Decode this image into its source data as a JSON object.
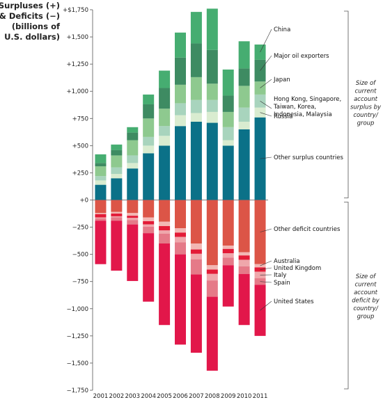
{
  "chart_data": {
    "type": "bar",
    "stacked": true,
    "ylabel_lines": [
      "Surpluses (+)",
      "& Deficits (−)",
      "(billions of",
      "U.S. dollars)"
    ],
    "categories": [
      "2001",
      "2002",
      "2003",
      "2004",
      "2005",
      "2006",
      "2007",
      "2008",
      "2009",
      "2010",
      "2011"
    ],
    "ylim": [
      -1750,
      1750
    ],
    "yticks": [
      1750,
      1500,
      1250,
      1000,
      750,
      500,
      250,
      0,
      -250,
      -500,
      -750,
      -1000,
      -1250,
      -1500,
      -1750
    ],
    "ytick_labels": [
      "+$1,750",
      "+1,500",
      "+1,250",
      "+1,000",
      "+750",
      "+500",
      "+250",
      "+0",
      "−250",
      "−500",
      "−750",
      "−1,000",
      "−1,250",
      "−1,500",
      "−1,750"
    ],
    "surplus_series": [
      {
        "name": "Other surplus countries",
        "color": "#0b7188",
        "values": [
          140,
          200,
          290,
          430,
          500,
          680,
          720,
          710,
          500,
          650,
          760
        ]
      },
      {
        "name": "Russia",
        "color": "#d9ecd0",
        "values": [
          40,
          40,
          50,
          70,
          90,
          100,
          80,
          100,
          50,
          70,
          90
        ]
      },
      {
        "name": "Hong Kong, Singapore, Taiwan, Korea, Indonesia, Malaysia",
        "color": "#a8d4bd",
        "values": [
          40,
          60,
          70,
          80,
          90,
          110,
          120,
          110,
          120,
          130,
          120
        ]
      },
      {
        "name": "Japan",
        "color": "#8ec98f",
        "values": [
          90,
          110,
          140,
          170,
          160,
          170,
          210,
          150,
          140,
          200,
          120
        ]
      },
      {
        "name": "Major oil exporters",
        "color": "#3e8b62",
        "values": [
          30,
          50,
          70,
          130,
          190,
          250,
          310,
          310,
          150,
          160,
          200
        ]
      },
      {
        "name": "China",
        "color": "#46ad71",
        "values": [
          80,
          50,
          50,
          90,
          160,
          230,
          290,
          380,
          240,
          250,
          140
        ]
      }
    ],
    "deficit_series": [
      {
        "name": "Other deficit countries",
        "color": "#dc5547",
        "values": [
          -120,
          -110,
          -120,
          -160,
          -200,
          -260,
          -400,
          -600,
          -420,
          -480,
          -590
        ]
      },
      {
        "name": "Australia",
        "color": "#f2b7b3",
        "values": [
          -10,
          -15,
          -25,
          -35,
          -40,
          -40,
          -55,
          -40,
          -30,
          -30,
          -30
        ]
      },
      {
        "name": "United Kingdom",
        "color": "#e31b37",
        "values": [
          -30,
          -25,
          -20,
          -30,
          -40,
          -40,
          -40,
          -40,
          -40,
          -40,
          -40
        ]
      },
      {
        "name": "Italy",
        "color": "#efa7ab",
        "values": [
          -10,
          -10,
          -20,
          -20,
          -30,
          -50,
          -50,
          -60,
          -40,
          -60,
          -60
        ]
      },
      {
        "name": "Spain",
        "color": "#e57a88",
        "values": [
          -20,
          -30,
          -40,
          -60,
          -90,
          -110,
          -140,
          -150,
          -70,
          -70,
          -60
        ]
      },
      {
        "name": "United States",
        "color": "#e2174a",
        "values": [
          -400,
          -460,
          -520,
          -630,
          -750,
          -830,
          -720,
          -680,
          -380,
          -470,
          -470
        ]
      }
    ],
    "group_labels": {
      "surplus": [
        "Size of",
        "current",
        "account",
        "surplus by",
        "country/",
        "group"
      ],
      "deficit": [
        "Size of",
        "current",
        "account",
        "deficit by",
        "country/",
        "group"
      ]
    },
    "grid": false
  }
}
